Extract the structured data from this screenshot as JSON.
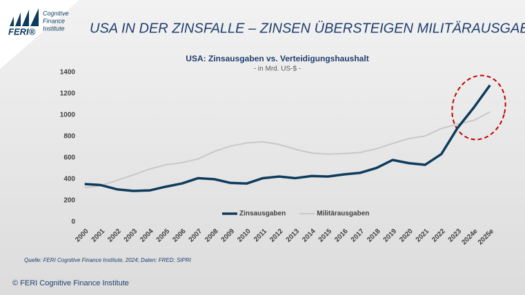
{
  "header": {
    "logo": "FERI®",
    "logo_lines": [
      "Cognitive",
      "Finance",
      "Institute"
    ],
    "title": "USA IN DER ZINSFALLE – ZINSEN ÜBERSTEIGEN MILITÄRAUSGABEN"
  },
  "chart_data": {
    "type": "line",
    "title": "USA: Zinsausgaben vs. Verteidigungshaushalt",
    "subtitle": "- in Mrd. US-$ -",
    "categories": [
      "2000",
      "2001",
      "2002",
      "2003",
      "2004",
      "2005",
      "2006",
      "2007",
      "2008",
      "2009",
      "2010",
      "2011",
      "2012",
      "2013",
      "2014",
      "2015",
      "2016",
      "2017",
      "2018",
      "2019",
      "2020",
      "2021",
      "2022",
      "2023",
      "2024e",
      "2025e"
    ],
    "series": [
      {
        "name": "Zinsausgaben",
        "color": "#0d3b5c",
        "values": [
          355,
          345,
          305,
          290,
          295,
          330,
          360,
          410,
          400,
          365,
          360,
          410,
          425,
          410,
          430,
          425,
          445,
          460,
          505,
          580,
          550,
          535,
          635,
          880,
          1070,
          1280
        ]
      },
      {
        "name": "Militärausgaben",
        "color": "#c8c8c8",
        "values": [
          320,
          340,
          390,
          440,
          495,
          535,
          555,
          590,
          660,
          710,
          740,
          750,
          725,
          680,
          645,
          635,
          640,
          650,
          685,
          735,
          780,
          805,
          875,
          915,
          950,
          1030
        ]
      }
    ],
    "ylim": [
      0,
      1400
    ],
    "yticks": [
      0,
      200,
      400,
      600,
      800,
      1000,
      1200,
      1400
    ],
    "grid": false,
    "legend": "bottom"
  },
  "source": "Quelle: FERI Cognitive Finance Institute, 2024; Daten: FRED; SIPRI",
  "footer": "© FERI Cognitive Finance Institute"
}
